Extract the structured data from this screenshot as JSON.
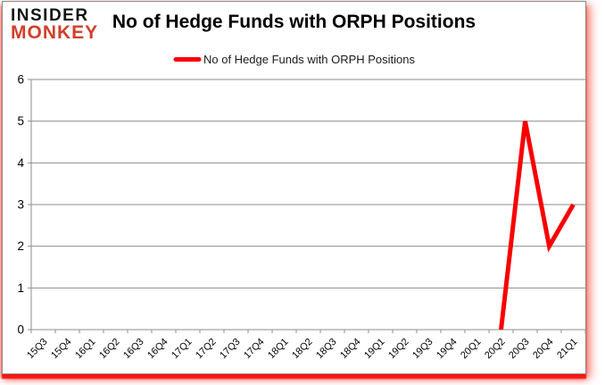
{
  "logo": {
    "line1": "INSIDER",
    "line2": "MONKEY",
    "line1_color": "#121212",
    "line2_color": "#d13f2b"
  },
  "header": {
    "title": "No of Hedge Funds with ORPH Positions"
  },
  "legend": {
    "label": "No of Hedge Funds with ORPH Positions"
  },
  "chart_data": {
    "type": "line",
    "title": "No of Hedge Funds with ORPH Positions",
    "categories": [
      "15Q3",
      "15Q4",
      "16Q1",
      "16Q2",
      "16Q3",
      "16Q4",
      "17Q1",
      "17Q2",
      "17Q3",
      "17Q4",
      "18Q1",
      "18Q2",
      "18Q3",
      "18Q4",
      "19Q1",
      "19Q2",
      "19Q3",
      "19Q4",
      "20Q1",
      "20Q2",
      "20Q3",
      "20Q4",
      "21Q1"
    ],
    "series": [
      {
        "name": "No of Hedge Funds with ORPH Positions",
        "color": "#f80000",
        "values": [
          null,
          null,
          null,
          null,
          null,
          null,
          null,
          null,
          null,
          null,
          null,
          null,
          null,
          null,
          null,
          null,
          null,
          null,
          null,
          0,
          5,
          2,
          3
        ]
      }
    ],
    "xlabel": "",
    "ylabel": "",
    "ylim": [
      0,
      6
    ],
    "ytick_interval": 1,
    "yticks": [
      0,
      1,
      2,
      3,
      4,
      5,
      6
    ],
    "grid": true,
    "gridline_color": "#8e8e8e",
    "axis_color": "#8e8e8e",
    "tick_label_color": "#000000",
    "legend_position": "top"
  }
}
